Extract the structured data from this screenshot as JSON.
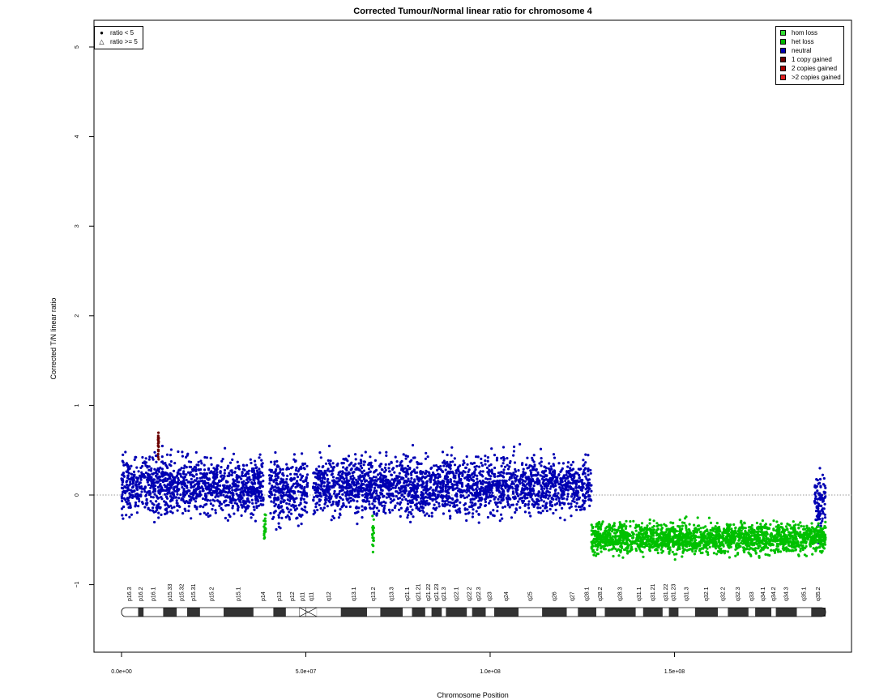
{
  "chart_data": {
    "type": "scatter",
    "title": "Corrected Tumour/Normal linear ratio for chromosome  4",
    "xlabel": "Chromosome Position",
    "ylabel": "Corrected T/N linear ratio",
    "xlim": [
      0,
      191000000
    ],
    "ylim": [
      -1.75,
      5.25
    ],
    "x_ticks": [
      {
        "value": 0,
        "label": "0.0e+00"
      },
      {
        "value": 50000000,
        "label": "5.0e+07"
      },
      {
        "value": 100000000,
        "label": "1.0e+08"
      },
      {
        "value": 150000000,
        "label": "1.5e+08"
      }
    ],
    "y_ticks": [
      {
        "value": -1,
        "label": "−1"
      },
      {
        "value": 0,
        "label": "0"
      },
      {
        "value": 1,
        "label": "1"
      },
      {
        "value": 2,
        "label": "2"
      },
      {
        "value": 3,
        "label": "3"
      },
      {
        "value": 4,
        "label": "4"
      },
      {
        "value": 5,
        "label": "5"
      }
    ],
    "reference_line": 0,
    "legend_symbols": [
      {
        "label": "ratio < 5",
        "symbol": "●"
      },
      {
        "label": "ratio >= 5",
        "symbol": "△"
      }
    ],
    "legend_copy_number": [
      {
        "label": "hom loss",
        "color": "#33dd33"
      },
      {
        "label": "het loss",
        "color": "#00b800"
      },
      {
        "label": "neutral",
        "color": "#0000b3"
      },
      {
        "label": "1 copy gained",
        "color": "#6b0000"
      },
      {
        "label": "2 copies gained",
        "color": "#a80000"
      },
      {
        "label": ">2 copies gained",
        "color": "#e02020"
      }
    ],
    "series": [
      {
        "state": "neutral",
        "color": "#0000b3",
        "segments": [
          {
            "x_start": 0,
            "x_end": 38500000,
            "mean": 0.1,
            "spread": 0.22
          },
          {
            "x_start": 40000000,
            "x_end": 50500000,
            "mean": 0.05,
            "spread": 0.24
          },
          {
            "x_start": 52000000,
            "x_end": 127500000,
            "mean": 0.1,
            "spread": 0.22
          },
          {
            "x_start": 188000000,
            "x_end": 191000000,
            "mean": -0.1,
            "spread": 0.25
          }
        ]
      },
      {
        "state": "het loss",
        "color": "#00c000",
        "segments": [
          {
            "x_start": 38600000,
            "x_end": 39200000,
            "mean": -0.35,
            "spread": 0.15
          },
          {
            "x_start": 68000000,
            "x_end": 68500000,
            "mean": -0.4,
            "spread": 0.15
          },
          {
            "x_start": 127500000,
            "x_end": 191000000,
            "mean": -0.48,
            "spread": 0.12
          }
        ]
      },
      {
        "state": "1 copy gained",
        "color": "#6b0000",
        "segments": [
          {
            "x_start": 9900000,
            "x_end": 10100000,
            "mean": 0.55,
            "spread": 0.12
          }
        ]
      }
    ],
    "chromosome_bands": [
      {
        "label": "p16.3",
        "start": 0,
        "end": 4500000,
        "stain": "white"
      },
      {
        "label": "p16.2",
        "start": 4500000,
        "end": 6000000,
        "stain": "black"
      },
      {
        "label": "p16.1",
        "start": 6000000,
        "end": 11300000,
        "stain": "white"
      },
      {
        "label": "p15.33",
        "start": 11300000,
        "end": 15000000,
        "stain": "black"
      },
      {
        "label": "p15.32",
        "start": 15000000,
        "end": 17800000,
        "stain": "white"
      },
      {
        "label": "p15.31",
        "start": 17800000,
        "end": 21300000,
        "stain": "black"
      },
      {
        "label": "p15.2",
        "start": 21300000,
        "end": 27700000,
        "stain": "white"
      },
      {
        "label": "p15.1",
        "start": 27700000,
        "end": 35800000,
        "stain": "black"
      },
      {
        "label": "p14",
        "start": 35800000,
        "end": 41200000,
        "stain": "white"
      },
      {
        "label": "p13",
        "start": 41200000,
        "end": 44600000,
        "stain": "black"
      },
      {
        "label": "p12",
        "start": 44600000,
        "end": 48200000,
        "stain": "white"
      },
      {
        "label": "p11",
        "start": 48200000,
        "end": 50000000,
        "stain": "centromere"
      },
      {
        "label": "q11",
        "start": 50000000,
        "end": 53000000,
        "stain": "centromere"
      },
      {
        "label": "q12",
        "start": 53000000,
        "end": 59500000,
        "stain": "white"
      },
      {
        "label": "q13.1",
        "start": 59500000,
        "end": 66600000,
        "stain": "black"
      },
      {
        "label": "q13.2",
        "start": 66600000,
        "end": 70200000,
        "stain": "white"
      },
      {
        "label": "q13.3",
        "start": 70200000,
        "end": 76300000,
        "stain": "black"
      },
      {
        "label": "q21.1",
        "start": 76300000,
        "end": 78800000,
        "stain": "white"
      },
      {
        "label": "q21.21",
        "start": 78800000,
        "end": 82400000,
        "stain": "black"
      },
      {
        "label": "q21.22",
        "start": 82400000,
        "end": 84100000,
        "stain": "white"
      },
      {
        "label": "q21.23",
        "start": 84100000,
        "end": 86900000,
        "stain": "black"
      },
      {
        "label": "q21.3",
        "start": 86900000,
        "end": 88000000,
        "stain": "white"
      },
      {
        "label": "q22.1",
        "start": 88000000,
        "end": 93700000,
        "stain": "black"
      },
      {
        "label": "q22.2",
        "start": 93700000,
        "end": 95100000,
        "stain": "white"
      },
      {
        "label": "q22.3",
        "start": 95100000,
        "end": 98800000,
        "stain": "black"
      },
      {
        "label": "q23",
        "start": 98800000,
        "end": 101100000,
        "stain": "white"
      },
      {
        "label": "q24",
        "start": 101100000,
        "end": 107700000,
        "stain": "black"
      },
      {
        "label": "q25",
        "start": 107700000,
        "end": 114100000,
        "stain": "white"
      },
      {
        "label": "q26",
        "start": 114100000,
        "end": 120800000,
        "stain": "black"
      },
      {
        "label": "q27",
        "start": 120800000,
        "end": 123800000,
        "stain": "white"
      },
      {
        "label": "q28.1",
        "start": 123800000,
        "end": 128800000,
        "stain": "black"
      },
      {
        "label": "q28.2",
        "start": 128800000,
        "end": 131100000,
        "stain": "white"
      },
      {
        "label": "q28.3",
        "start": 131100000,
        "end": 139500000,
        "stain": "black"
      },
      {
        "label": "q31.1",
        "start": 139500000,
        "end": 141500000,
        "stain": "white"
      },
      {
        "label": "q31.21",
        "start": 141500000,
        "end": 146800000,
        "stain": "black"
      },
      {
        "label": "q31.22",
        "start": 146800000,
        "end": 148500000,
        "stain": "white"
      },
      {
        "label": "q31.23",
        "start": 148500000,
        "end": 151100000,
        "stain": "black"
      },
      {
        "label": "q31.3",
        "start": 151100000,
        "end": 155600000,
        "stain": "white"
      },
      {
        "label": "q32.1",
        "start": 155600000,
        "end": 161800000,
        "stain": "black"
      },
      {
        "label": "q32.2",
        "start": 161800000,
        "end": 164500000,
        "stain": "white"
      },
      {
        "label": "q32.3",
        "start": 164500000,
        "end": 170100000,
        "stain": "black"
      },
      {
        "label": "q33",
        "start": 170100000,
        "end": 171900000,
        "stain": "white"
      },
      {
        "label": "q34.1",
        "start": 171900000,
        "end": 176300000,
        "stain": "black"
      },
      {
        "label": "q34.2",
        "start": 176300000,
        "end": 177500000,
        "stain": "white"
      },
      {
        "label": "q34.3",
        "start": 177500000,
        "end": 183200000,
        "stain": "black"
      },
      {
        "label": "q35.1",
        "start": 183200000,
        "end": 187100000,
        "stain": "white"
      },
      {
        "label": "q35.2",
        "start": 187100000,
        "end": 191000000,
        "stain": "black"
      }
    ]
  }
}
